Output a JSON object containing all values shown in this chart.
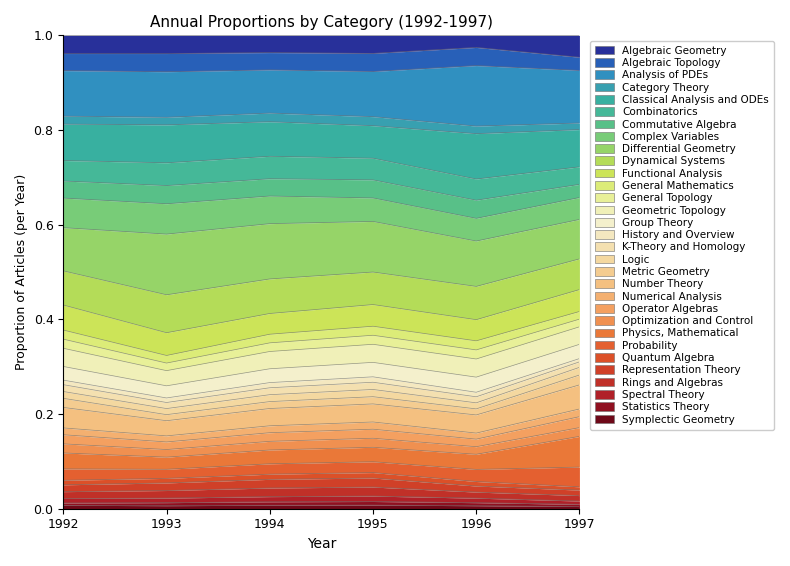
{
  "title": "Annual Proportions by Category (1992-1997)",
  "xlabel": "Year",
  "ylabel": "Proportion of Articles (per Year)",
  "years": [
    1992,
    1993,
    1994,
    1995,
    1996,
    1997
  ],
  "categories_bottom_to_top": [
    "Symplectic Geometry",
    "Statistics Theory",
    "Spectral Theory",
    "Rings and Algebras",
    "Representation Theory",
    "Quantum Algebra",
    "Probability",
    "Physics, Mathematical",
    "Optimization and Control",
    "Operator Algebras",
    "Numerical Analysis",
    "Number Theory",
    "Metric Geometry",
    "Logic",
    "K-Theory and Homology",
    "History and Overview",
    "Group Theory",
    "Geometric Topology",
    "General Topology",
    "General Mathematics",
    "Functional Analysis",
    "Dynamical Systems",
    "Differential Geometry",
    "Complex Variables",
    "Commutative Algebra",
    "Combinatorics",
    "Classical Analysis and ODEs",
    "Category Theory",
    "Analysis of PDEs",
    "Algebraic Topology",
    "Algebraic Geometry"
  ],
  "colors": {
    "Algebraic Geometry": "#28309a",
    "Algebraic Topology": "#2860b8",
    "Analysis of PDEs": "#3090c0",
    "Category Theory": "#38a0b0",
    "Classical Analysis and ODEs": "#38b0a0",
    "Combinatorics": "#45b898",
    "Commutative Algebra": "#58c088",
    "Complex Variables": "#78cc78",
    "Differential Geometry": "#96d468",
    "Dynamical Systems": "#b4dc58",
    "Functional Analysis": "#cce458",
    "General Mathematics": "#dcec78",
    "General Topology": "#e8f098",
    "Geometric Topology": "#f0f0b8",
    "Group Theory": "#f4f0cc",
    "History and Overview": "#f4e8c0",
    "K-Theory and Homology": "#f4e0b0",
    "Logic": "#f4d8a0",
    "Metric Geometry": "#f4cc90",
    "Number Theory": "#f4c080",
    "Numerical Analysis": "#f4b070",
    "Operator Algebras": "#f4a060",
    "Optimization and Control": "#f09050",
    "Physics, Mathematical": "#ea7838",
    "Probability": "#e46030",
    "Quantum Algebra": "#dc5028",
    "Representation Theory": "#d04028",
    "Rings and Algebras": "#c03028",
    "Spectral Theory": "#b02028",
    "Statistics Theory": "#901020",
    "Symplectic Geometry": "#6e0818"
  },
  "raw_data": {
    "Symplectic Geometry": [
      0.003,
      0.002,
      0.002,
      0.002,
      0.002,
      0.002
    ],
    "Statistics Theory": [
      0.002,
      0.002,
      0.002,
      0.002,
      0.002,
      0.002
    ],
    "Spectral Theory": [
      0.004,
      0.003,
      0.003,
      0.003,
      0.003,
      0.003
    ],
    "Rings and Algebras": [
      0.006,
      0.005,
      0.005,
      0.005,
      0.004,
      0.005
    ],
    "Representation Theory": [
      0.006,
      0.005,
      0.005,
      0.005,
      0.004,
      0.005
    ],
    "Quantum Algebra": [
      0.004,
      0.003,
      0.003,
      0.003,
      0.003,
      0.003
    ],
    "Probability": [
      0.01,
      0.006,
      0.006,
      0.006,
      0.008,
      0.018
    ],
    "Physics, Mathematical": [
      0.014,
      0.008,
      0.008,
      0.008,
      0.01,
      0.028
    ],
    "Optimization and Control": [
      0.008,
      0.005,
      0.005,
      0.005,
      0.005,
      0.008
    ],
    "Operator Algebras": [
      0.008,
      0.005,
      0.005,
      0.005,
      0.005,
      0.01
    ],
    "Numerical Analysis": [
      0.006,
      0.004,
      0.004,
      0.004,
      0.004,
      0.007
    ],
    "Number Theory": [
      0.018,
      0.01,
      0.01,
      0.01,
      0.012,
      0.022
    ],
    "Metric Geometry": [
      0.008,
      0.004,
      0.004,
      0.004,
      0.004,
      0.009
    ],
    "Logic": [
      0.006,
      0.004,
      0.004,
      0.004,
      0.004,
      0.007
    ],
    "K-Theory and Homology": [
      0.006,
      0.004,
      0.004,
      0.004,
      0.004,
      0.005
    ],
    "History and Overview": [
      0.004,
      0.003,
      0.003,
      0.003,
      0.003,
      0.003
    ],
    "Group Theory": [
      0.012,
      0.008,
      0.008,
      0.008,
      0.01,
      0.013
    ],
    "Geometric Topology": [
      0.016,
      0.01,
      0.01,
      0.01,
      0.012,
      0.016
    ],
    "General Topology": [
      0.008,
      0.005,
      0.005,
      0.005,
      0.006,
      0.007
    ],
    "General Mathematics": [
      0.008,
      0.005,
      0.005,
      0.005,
      0.006,
      0.007
    ],
    "Functional Analysis": [
      0.022,
      0.015,
      0.012,
      0.012,
      0.014,
      0.02
    ],
    "Dynamical Systems": [
      0.03,
      0.025,
      0.02,
      0.018,
      0.022,
      0.028
    ],
    "Differential Geometry": [
      0.038,
      0.04,
      0.032,
      0.028,
      0.03,
      0.036
    ],
    "Complex Variables": [
      0.026,
      0.02,
      0.016,
      0.013,
      0.015,
      0.02
    ],
    "Commutative Algebra": [
      0.015,
      0.012,
      0.01,
      0.01,
      0.012,
      0.012
    ],
    "Combinatorics": [
      0.018,
      0.015,
      0.013,
      0.012,
      0.014,
      0.016
    ],
    "Classical Analysis and ODEs": [
      0.032,
      0.025,
      0.02,
      0.018,
      0.03,
      0.034
    ],
    "Category Theory": [
      0.007,
      0.005,
      0.005,
      0.005,
      0.005,
      0.006
    ],
    "Analysis of PDEs": [
      0.04,
      0.03,
      0.025,
      0.025,
      0.04,
      0.048
    ],
    "Algebraic Topology": [
      0.015,
      0.012,
      0.01,
      0.01,
      0.012,
      0.012
    ],
    "Algebraic Geometry": [
      0.016,
      0.012,
      0.01,
      0.01,
      0.008,
      0.02
    ]
  }
}
